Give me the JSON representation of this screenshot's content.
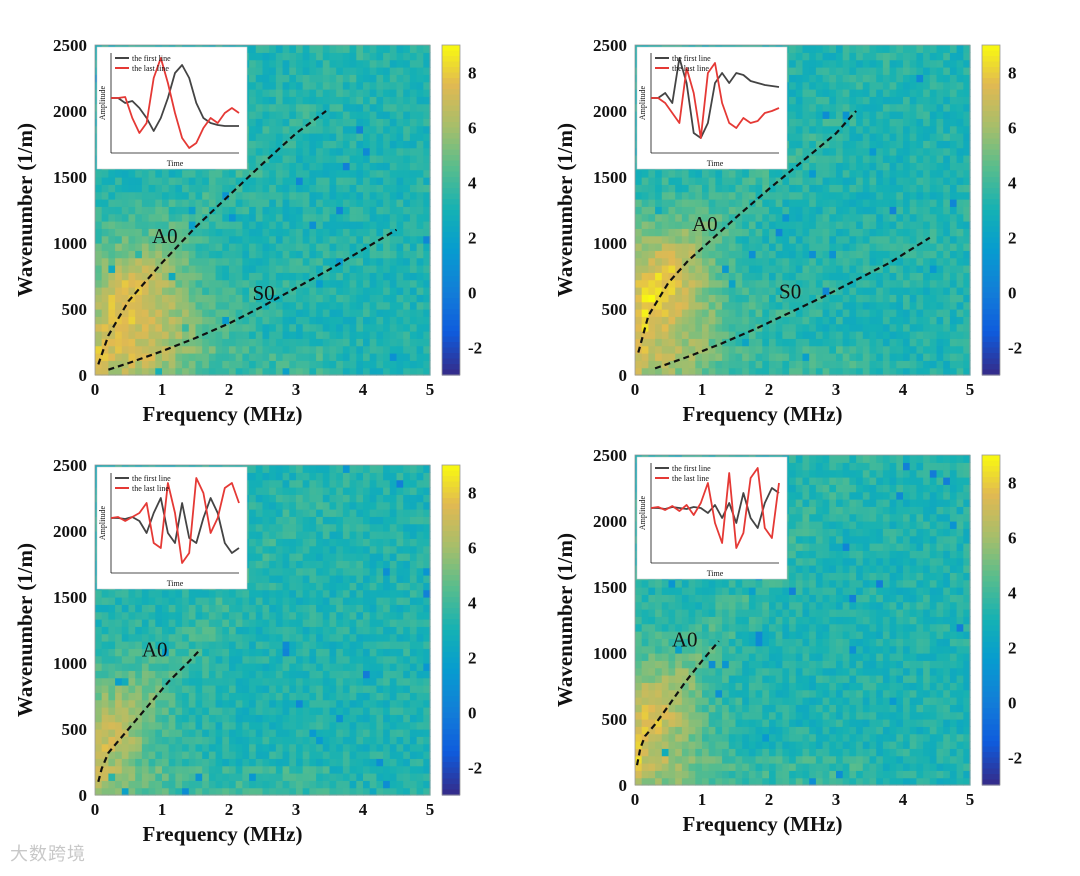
{
  "colors": {
    "curve": "#111111",
    "first_line": "#444444",
    "last_line": "#e53935",
    "axis": "#111111"
  },
  "watermark": "大数跨境",
  "chart_data": [
    {
      "type": "heatmap",
      "xlabel": "Frequency (MHz)",
      "ylabel": "Wavenumber (1/m)",
      "xlim": [
        0,
        5
      ],
      "ylim": [
        0,
        2500
      ],
      "xticks": [
        "0",
        "1",
        "2",
        "3",
        "4",
        "5"
      ],
      "yticks": [
        "0",
        "500",
        "1000",
        "1500",
        "2000",
        "2500"
      ],
      "colorbar": {
        "range": [
          -3,
          9
        ],
        "ticks": [
          "-2",
          "0",
          "2",
          "4",
          "6",
          "8"
        ]
      },
      "hot_region": {
        "center": [
          0.6,
          480
        ],
        "strength": 3.8,
        "ridge_S0": true,
        "ridge_A0": true
      },
      "curves": [
        {
          "name": "A0",
          "label": "A0",
          "label_pos": [
            0.85,
            1000
          ],
          "x": [
            0.05,
            0.2,
            0.5,
            1.0,
            1.5,
            2.0,
            2.5,
            3.0,
            3.45
          ],
          "y": [
            80,
            300,
            560,
            850,
            1120,
            1360,
            1600,
            1830,
            2000
          ]
        },
        {
          "name": "S0",
          "label": "S0",
          "label_pos": [
            2.35,
            570
          ],
          "x": [
            0.2,
            0.5,
            1.0,
            1.5,
            2.0,
            2.5,
            3.0,
            3.5,
            4.0,
            4.5
          ],
          "y": [
            40,
            90,
            180,
            280,
            390,
            520,
            660,
            800,
            950,
            1100
          ]
        }
      ],
      "inset": {
        "legend": [
          "the first line",
          "the last line"
        ],
        "xlabel": "Time",
        "ylabel": "Amplitude",
        "first_line": [
          0.55,
          0.55,
          0.5,
          0.52,
          0.45,
          0.35,
          0.22,
          0.35,
          0.55,
          0.8,
          0.88,
          0.75,
          0.5,
          0.35,
          0.3,
          0.28,
          0.27,
          0.27,
          0.27
        ],
        "last_line": [
          0.55,
          0.55,
          0.56,
          0.35,
          0.2,
          0.3,
          0.75,
          0.95,
          0.7,
          0.4,
          0.15,
          0.05,
          0.1,
          0.25,
          0.35,
          0.3,
          0.4,
          0.45,
          0.4
        ]
      }
    },
    {
      "type": "heatmap",
      "xlabel": "Frequency (MHz)",
      "ylabel": "Wavenumber (1/m)",
      "xlim": [
        0,
        5
      ],
      "ylim": [
        0,
        2500
      ],
      "xticks": [
        "0",
        "1",
        "2",
        "3",
        "4",
        "5"
      ],
      "yticks": [
        "0",
        "500",
        "1000",
        "1500",
        "2000",
        "2500"
      ],
      "colorbar": {
        "range": [
          -3,
          9
        ],
        "ticks": [
          "-2",
          "0",
          "2",
          "4",
          "6",
          "8"
        ]
      },
      "hot_region": {
        "center": [
          0.3,
          600
        ],
        "strength": 4.2,
        "ridge_S0": true,
        "ridge_A0": true
      },
      "curves": [
        {
          "name": "A0",
          "label": "A0",
          "label_pos": [
            0.85,
            1090
          ],
          "x": [
            0.05,
            0.2,
            0.5,
            0.8,
            1.0,
            1.5,
            2.0,
            2.5,
            3.0,
            3.3
          ],
          "y": [
            170,
            450,
            700,
            870,
            960,
            1190,
            1410,
            1620,
            1830,
            2000
          ]
        },
        {
          "name": "S0",
          "label": "S0",
          "label_pos": [
            2.15,
            580
          ],
          "x": [
            0.3,
            0.8,
            1.3,
            1.8,
            2.3,
            2.8,
            3.3,
            3.8,
            4.4
          ],
          "y": [
            50,
            140,
            240,
            350,
            470,
            590,
            720,
            850,
            1040
          ]
        }
      ],
      "inset": {
        "legend": [
          "the first line",
          "the last line"
        ],
        "xlabel": "Time",
        "ylabel": "Amplitude",
        "first_line": [
          0.55,
          0.55,
          0.6,
          0.5,
          0.95,
          0.7,
          0.2,
          0.15,
          0.3,
          0.7,
          0.8,
          0.7,
          0.8,
          0.78,
          0.72,
          0.7,
          0.68,
          0.67,
          0.66
        ],
        "last_line": [
          0.55,
          0.55,
          0.5,
          0.4,
          0.3,
          0.85,
          0.6,
          0.15,
          0.8,
          0.9,
          0.5,
          0.3,
          0.25,
          0.35,
          0.3,
          0.32,
          0.4,
          0.42,
          0.45
        ]
      }
    },
    {
      "type": "heatmap",
      "xlabel": "Frequency (MHz)",
      "ylabel": "Wavenumber (1/m)",
      "xlim": [
        0,
        5
      ],
      "ylim": [
        0,
        2500
      ],
      "xticks": [
        "0",
        "1",
        "2",
        "3",
        "4",
        "5"
      ],
      "yticks": [
        "0",
        "500",
        "1000",
        "1500",
        "2000",
        "2500"
      ],
      "colorbar": {
        "range": [
          -3,
          9
        ],
        "ticks": [
          "-2",
          "0",
          "2",
          "4",
          "6",
          "8"
        ]
      },
      "hot_region": {
        "center": [
          0.1,
          450
        ],
        "strength": 2.6,
        "ridge_S0": false,
        "ridge_A0": true
      },
      "curves": [
        {
          "name": "A0",
          "label": "A0",
          "label_pos": [
            0.7,
            1050
          ],
          "x": [
            0.05,
            0.1,
            0.2,
            0.3,
            0.5,
            0.8,
            1.1,
            1.4,
            1.55
          ],
          "y": [
            100,
            200,
            320,
            380,
            500,
            680,
            860,
            1010,
            1090
          ]
        }
      ],
      "inset": {
        "legend": [
          "the first line",
          "the last line"
        ],
        "xlabel": "Time",
        "ylabel": "Amplitude",
        "first_line": [
          0.55,
          0.55,
          0.54,
          0.56,
          0.52,
          0.4,
          0.6,
          0.75,
          0.4,
          0.3,
          0.7,
          0.35,
          0.3,
          0.55,
          0.75,
          0.6,
          0.3,
          0.2,
          0.25
        ],
        "last_line": [
          0.55,
          0.56,
          0.52,
          0.56,
          0.6,
          0.7,
          0.3,
          0.25,
          0.9,
          0.6,
          0.1,
          0.2,
          0.95,
          0.8,
          0.4,
          0.55,
          0.85,
          0.9,
          0.7
        ]
      }
    },
    {
      "type": "heatmap",
      "xlabel": "Frequency (MHz)",
      "ylabel": "Wavenumber (1/m)",
      "xlim": [
        0,
        5
      ],
      "ylim": [
        0,
        2500
      ],
      "xticks": [
        "0",
        "1",
        "2",
        "3",
        "4",
        "5"
      ],
      "yticks": [
        "0",
        "500",
        "1000",
        "1500",
        "2000",
        "2500"
      ],
      "colorbar": {
        "range": [
          -3,
          9
        ],
        "ticks": [
          "-2",
          "0",
          "2",
          "4",
          "6",
          "8"
        ]
      },
      "hot_region": {
        "center": [
          0.15,
          450
        ],
        "strength": 3.4,
        "ridge_S0": false,
        "ridge_A0": true
      },
      "curves": [
        {
          "name": "A0",
          "label": "A0",
          "label_pos": [
            0.55,
            1050
          ],
          "x": [
            0.03,
            0.08,
            0.15,
            0.3,
            0.5,
            0.75,
            1.0,
            1.25
          ],
          "y": [
            150,
            280,
            370,
            460,
            600,
            780,
            940,
            1090
          ]
        }
      ],
      "inset": {
        "legend": [
          "the first line",
          "the last line"
        ],
        "xlabel": "Time",
        "ylabel": "Amplitude",
        "first_line": [
          0.55,
          0.55,
          0.54,
          0.56,
          0.55,
          0.54,
          0.56,
          0.55,
          0.5,
          0.58,
          0.45,
          0.6,
          0.4,
          0.7,
          0.45,
          0.35,
          0.6,
          0.75,
          0.7
        ],
        "last_line": [
          0.55,
          0.56,
          0.53,
          0.57,
          0.52,
          0.58,
          0.48,
          0.6,
          0.8,
          0.4,
          0.2,
          0.9,
          0.15,
          0.3,
          0.85,
          0.95,
          0.35,
          0.25,
          0.8
        ]
      }
    }
  ]
}
